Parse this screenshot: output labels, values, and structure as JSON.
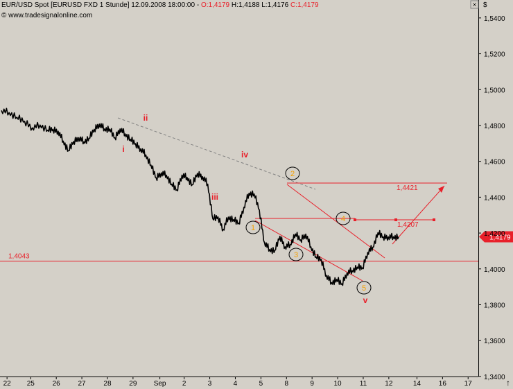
{
  "header": {
    "title_prefix": "EUR/USD Spot [EURUSD FXD  1 Stunde] 12.09.2008 18:00:00 - ",
    "o_label": "O:1,4179",
    "h_label": " H:1,4188",
    "l_label": " L:1,4176",
    "c_label": " C:1,4179",
    "website": "© www.tradesignalonline.com",
    "currency_symbol": "$",
    "close_box": "×"
  },
  "colors": {
    "background": "#d4d0c8",
    "price": "#000000",
    "annotation_red": "#e8202a",
    "wave_orange": "#f5a000",
    "trend_dashed": "#808080"
  },
  "chart_data": {
    "type": "line",
    "title": "EUR/USD Spot [EURUSD FXD  1 Stunde] 12.09.2008 18:00:00",
    "ylim": [
      1.333,
      1.55
    ],
    "y_ticks": [
      "1,5400",
      "1,5200",
      "1,5000",
      "1,4800",
      "1,4600",
      "1,4400",
      "1,4200",
      "1,4000",
      "1,3800",
      "1,3600",
      "1,3400"
    ],
    "y_tick_values": [
      1.54,
      1.52,
      1.5,
      1.48,
      1.46,
      1.44,
      1.42,
      1.4,
      1.38,
      1.36,
      1.34
    ],
    "x_ticks": [
      "22",
      "25",
      "26",
      "27",
      "28",
      "29",
      "Sep",
      "2",
      "3",
      "4",
      "5",
      "8",
      "9",
      "10",
      "11",
      "12",
      "14",
      "16",
      "17"
    ],
    "series": [
      {
        "name": "",
        "x": [
          0,
          0.3,
          0.6,
          0.9,
          1.2,
          1.5,
          1.8,
          2.0,
          2.2,
          2.4,
          2.6,
          2.8,
          3.0,
          3.2,
          3.4,
          3.6,
          3.8,
          4.0,
          4.2,
          4.4,
          4.6,
          4.8,
          5.0,
          5.2,
          5.4,
          5.6,
          5.8,
          6.0,
          6.2,
          6.4,
          6.6,
          6.8,
          7.0,
          7.2,
          7.4,
          7.6,
          7.8,
          8.0,
          8.2,
          8.4,
          8.6,
          8.8,
          9.0,
          9.2,
          9.4,
          9.6,
          9.8,
          10.0,
          10.2,
          10.4,
          10.6,
          10.8,
          11.0,
          11.2,
          11.4,
          11.6,
          11.8,
          12.0,
          12.2,
          12.4,
          12.6,
          12.8,
          13.0,
          13.2,
          13.4,
          13.6,
          13.8,
          14.0,
          14.2,
          14.4,
          14.6,
          14.8,
          15.0,
          15.2,
          15.4
        ],
        "values": [
          1.4884,
          1.4872,
          1.4846,
          1.4823,
          1.4787,
          1.4803,
          1.4774,
          1.4779,
          1.4768,
          1.4713,
          1.4659,
          1.4711,
          1.4732,
          1.4709,
          1.4729,
          1.4779,
          1.4808,
          1.4781,
          1.478,
          1.4731,
          1.4781,
          1.4753,
          1.4723,
          1.4699,
          1.467,
          1.4636,
          1.4579,
          1.4508,
          1.4536,
          1.4523,
          1.4473,
          1.4441,
          1.4523,
          1.451,
          1.4469,
          1.4533,
          1.4515,
          1.4473,
          1.4279,
          1.429,
          1.422,
          1.4289,
          1.4275,
          1.4255,
          1.4344,
          1.4422,
          1.4418,
          1.4329,
          1.4147,
          1.4108,
          1.4102,
          1.4182,
          1.4123,
          1.4136,
          1.4195,
          1.4162,
          1.4194,
          1.4123,
          1.4067,
          1.4053,
          1.3964,
          1.3923,
          1.3941,
          1.3917,
          1.3978,
          1.3991,
          1.401,
          1.4006,
          1.4092,
          1.4121,
          1.4202,
          1.4179,
          1.4179,
          1.4179,
          1.4179
        ]
      }
    ],
    "horizontal_lines": [
      {
        "label": "1,4043",
        "value": 1.4043
      }
    ],
    "target_labels": [
      {
        "label": "1,4421",
        "value": 1.4421
      },
      {
        "label": "1,4207",
        "value": 1.4207
      }
    ],
    "current_price_label": "1,4179",
    "elliott_wave_labels": {
      "red": [
        "i",
        "ii",
        "iii",
        "iv",
        "v"
      ],
      "orange_circled": [
        "1",
        "2",
        "3",
        "4",
        "5"
      ]
    }
  }
}
